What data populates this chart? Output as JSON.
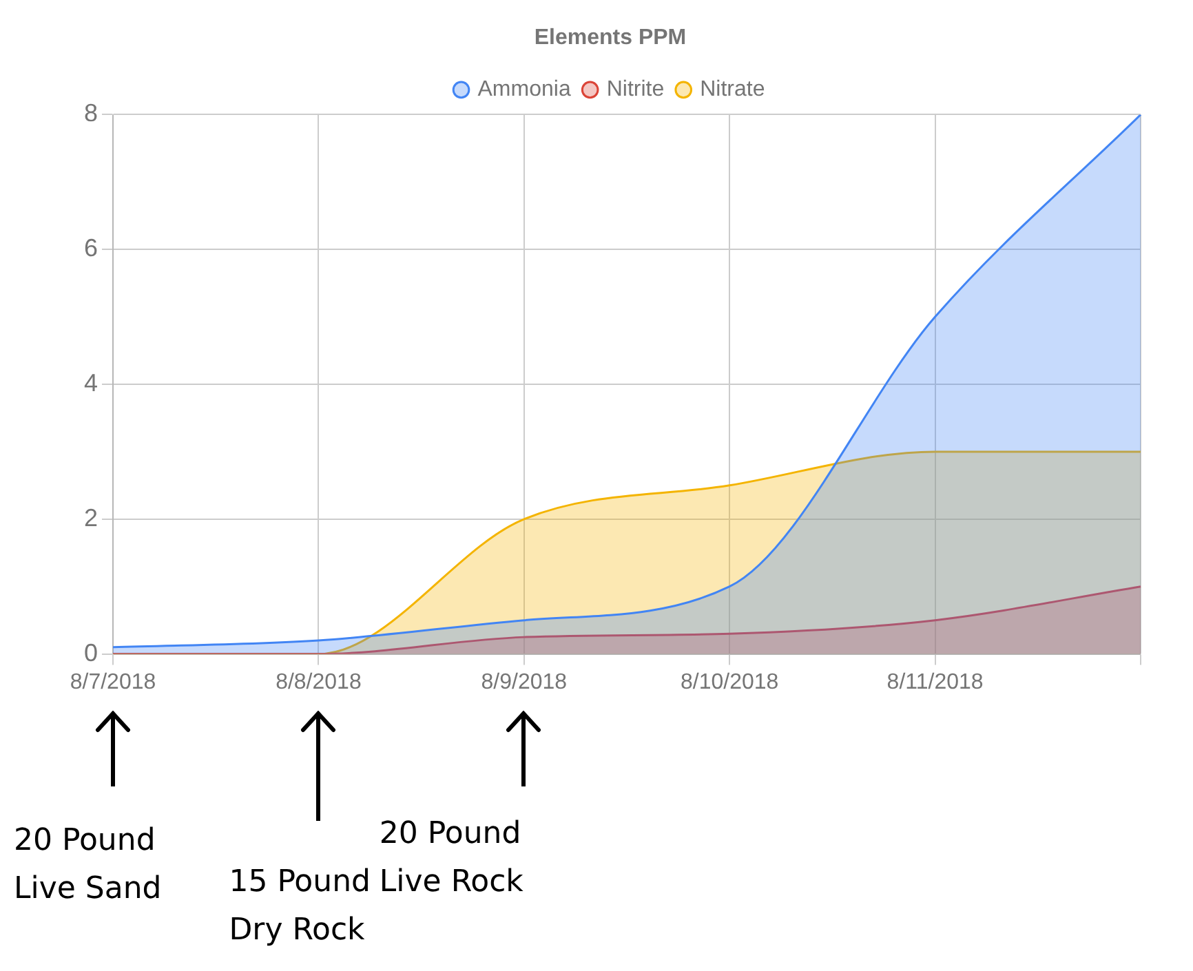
{
  "chart_data": {
    "type": "area",
    "title": "Elements PPM",
    "categories": [
      "8/7/2018",
      "8/8/2018",
      "8/9/2018",
      "8/10/2018",
      "8/11/2018",
      null
    ],
    "series": [
      {
        "name": "Ammonia",
        "color": "#4285f4",
        "values": [
          0.1,
          0.2,
          0.5,
          1,
          5,
          8
        ]
      },
      {
        "name": "Nitrite",
        "color": "#db4437",
        "values": [
          0,
          0,
          0.25,
          0.3,
          0.5,
          1
        ]
      },
      {
        "name": "Nitrate",
        "color": "#f4b400",
        "values": [
          0,
          0,
          2,
          2.5,
          3,
          3
        ]
      }
    ],
    "ylim": [
      0,
      8
    ],
    "yticks": [
      0,
      2,
      4,
      6,
      8
    ],
    "grid": true,
    "legend": "top",
    "marker": "none",
    "annotations": [
      "20 Pound Live Sand",
      "15 Pound Dry Rock",
      "20 Pound Live Rock"
    ]
  }
}
